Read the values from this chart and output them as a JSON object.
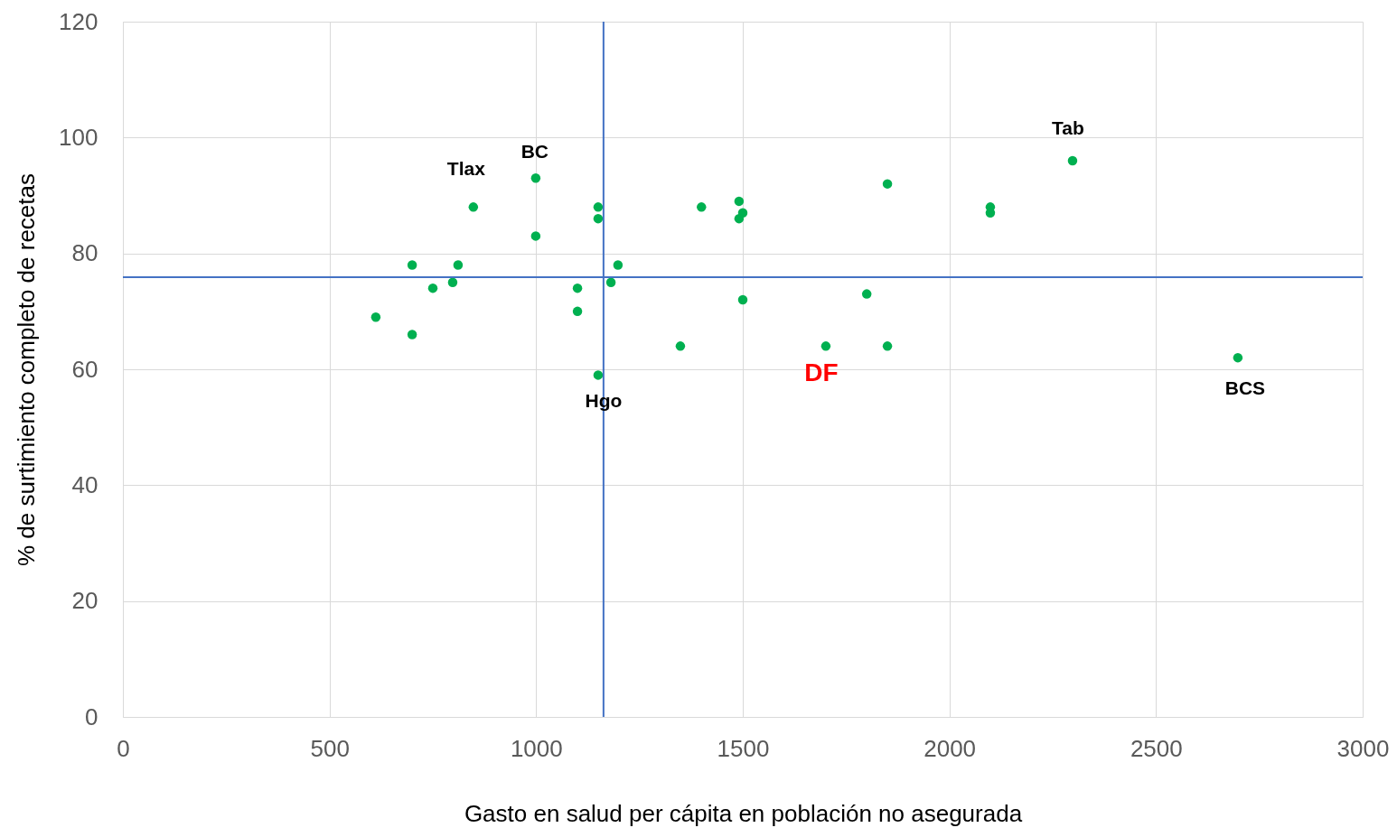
{
  "chart_data": {
    "type": "scatter",
    "xlabel": "Gasto en salud per cápita en población no asegurada",
    "ylabel": "% de surtimiento completo de recetas",
    "x": [
      612,
      700,
      700,
      750,
      798,
      811,
      848,
      999,
      999,
      1100,
      1100,
      1150,
      1150,
      1150,
      1181,
      1198,
      1349,
      1400,
      1491,
      1491,
      1500,
      1500,
      1701,
      1800,
      1850,
      1850,
      2099,
      2099,
      2298,
      2698
    ],
    "series": [
      {
        "color": "#00b050",
        "values": [
          69,
          78,
          66,
          74,
          75,
          78,
          88,
          93,
          83,
          74,
          70,
          88,
          86,
          59,
          75,
          78,
          64,
          88,
          89,
          86,
          87,
          72,
          64,
          73,
          92,
          64,
          88,
          87,
          96,
          62
        ]
      }
    ],
    "xlim": [
      0,
      3000
    ],
    "xticks": [
      0,
      500,
      1000,
      1500,
      2000,
      2500,
      3000
    ],
    "ylim": [
      0,
      120
    ],
    "yticks": [
      0,
      20,
      40,
      60,
      80,
      100,
      120
    ],
    "grid": true,
    "marker": "circle",
    "ref_lines": [
      {
        "axis": "x",
        "value": 1163,
        "color": "#4472c4"
      },
      {
        "axis": "y",
        "value": 75.9,
        "color": "#4472c4"
      }
    ],
    "annotations": [
      {
        "text": "Tlax",
        "x": 848,
        "y": 88
      },
      {
        "text": "BC",
        "x": 999,
        "y": 93
      },
      {
        "text": "Hgo",
        "x": 1150,
        "y": 59
      },
      {
        "text": "Tab",
        "x": 2298,
        "y": 96
      },
      {
        "text": "DF",
        "x": 1701,
        "y": 64
      },
      {
        "text": "BCS",
        "x": 2698,
        "y": 62
      }
    ]
  }
}
